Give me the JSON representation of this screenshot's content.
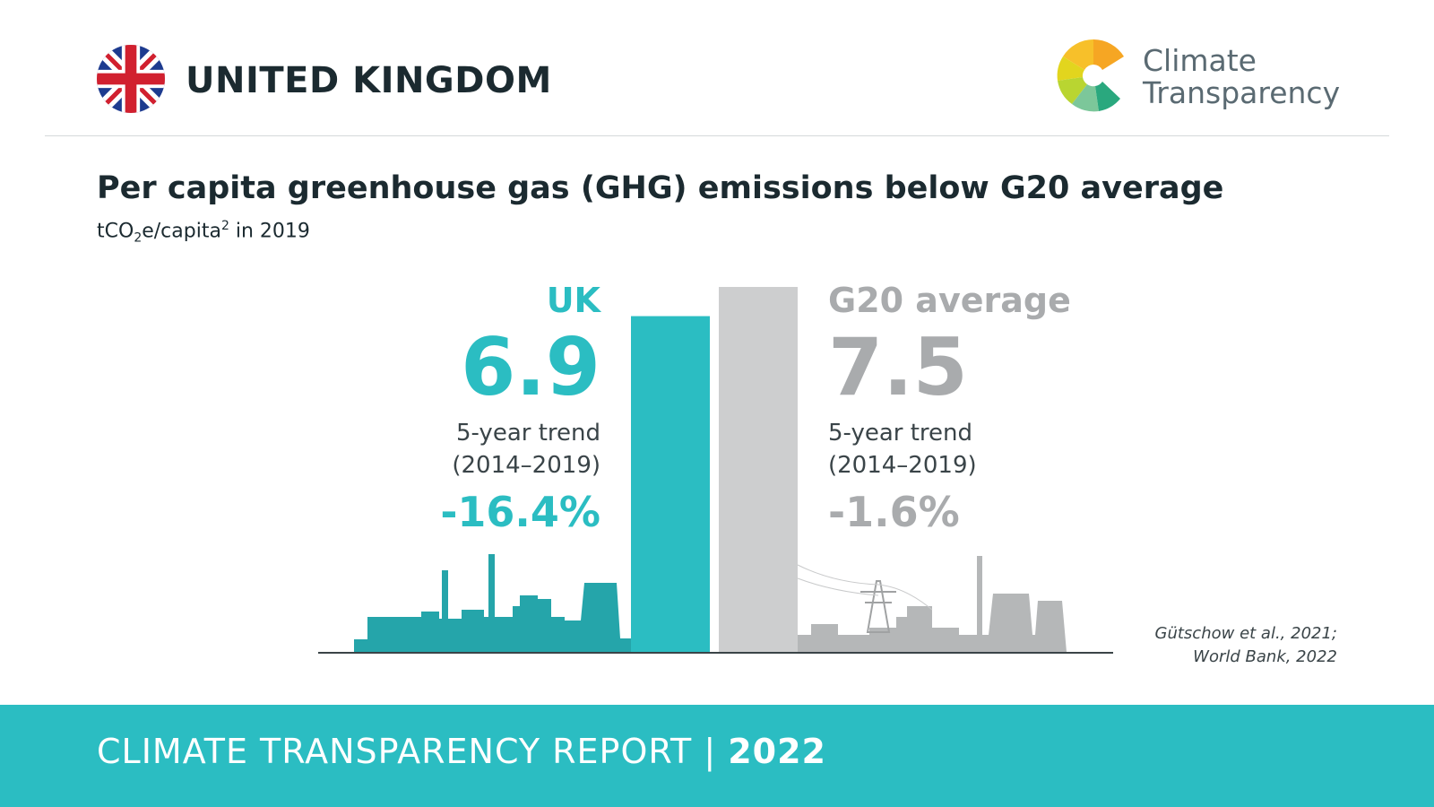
{
  "header": {
    "country": "UNITED KINGDOM",
    "logo_line1": "Climate",
    "logo_line2": "Transparency"
  },
  "title": "Per capita greenhouse gas (GHG) emissions below G20 average",
  "subtitle": {
    "pre": "tCO",
    "sub": "2",
    "mid": "e/capita",
    "sup": "2",
    "post": " in 2019"
  },
  "chart_data": {
    "type": "bar",
    "categories": [
      "UK",
      "G20 average"
    ],
    "values": [
      6.9,
      7.5
    ],
    "series_colors": [
      "#2bbdc2",
      "#cdcecf"
    ],
    "trend_label_line1": "5-year trend",
    "trend_label_line2": "(2014–2019)",
    "trends": [
      "-16.4%",
      "-1.6%"
    ],
    "value_labels": [
      "6.9",
      "7.5"
    ]
  },
  "source": {
    "line1": "Gütschow et al., 2021;",
    "line2": "World Bank, 2022"
  },
  "footer": {
    "text": "CLIMATE TRANSPARENCY REPORT",
    "separator": " | ",
    "year": "2022"
  },
  "colors": {
    "accent": "#2bbdc2",
    "accent_dark": "#25a5aa",
    "grey": "#a9abad",
    "grey_bar": "#cdcecf"
  }
}
